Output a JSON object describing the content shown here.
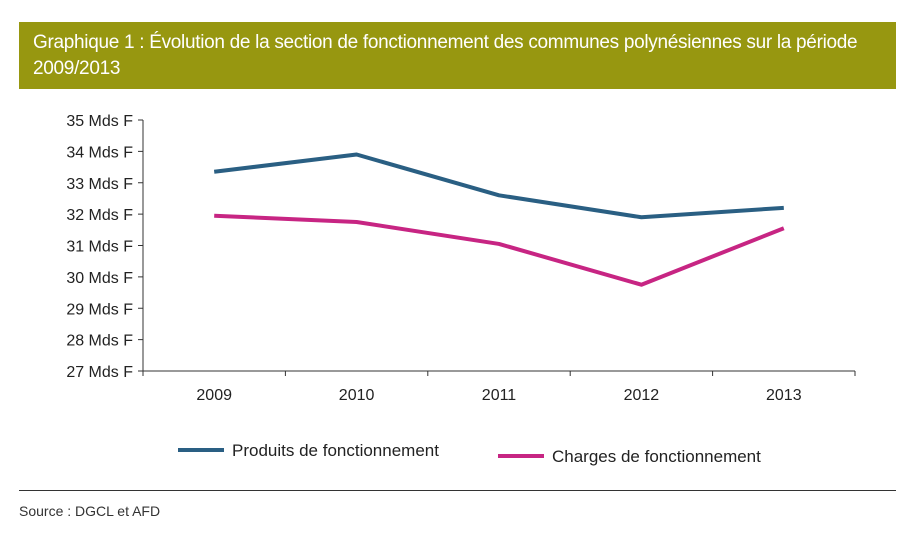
{
  "title": "Graphique 1 : Évolution de la section de fonctionnement des communes polynésiennes sur la période 2009/2013",
  "source": "Source : DGCL et AFD",
  "chart_data": {
    "type": "line",
    "title": "Graphique 1 : Évolution de la section de fonctionnement des communes polynésiennes sur la période 2009/2013",
    "categories": [
      "2009",
      "2010",
      "2011",
      "2012",
      "2013"
    ],
    "ylim": [
      27,
      35
    ],
    "yticks": [
      "27 Mds F",
      "28 Mds F",
      "29 Mds F",
      "30 Mds F",
      "31 Mds F",
      "32 Mds F",
      "33 Mds F",
      "34 Mds F",
      "35 Mds F"
    ],
    "series": [
      {
        "name": "Produits de fonctionnement",
        "color": "#2a5f83",
        "values": [
          33.35,
          33.9,
          32.6,
          31.9,
          32.2
        ]
      },
      {
        "name": "Charges de fonctionnement",
        "color": "#c72583",
        "values": [
          31.95,
          31.75,
          31.05,
          29.75,
          31.55
        ]
      }
    ],
    "legend": "bottom",
    "grid": false
  }
}
